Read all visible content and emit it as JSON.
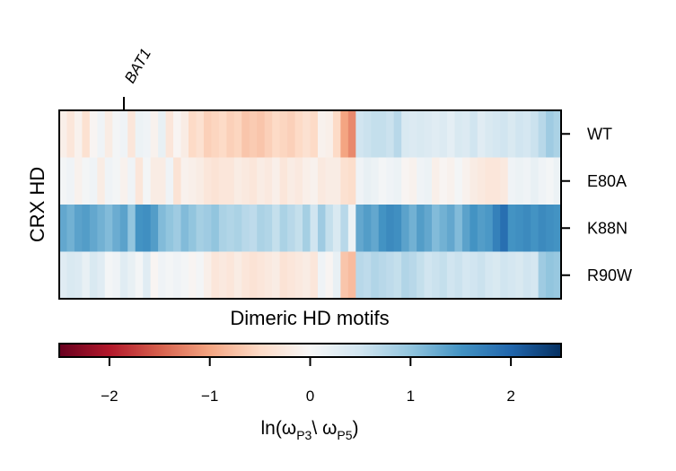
{
  "chart_data": {
    "type": "heatmap",
    "ylabel": "CRX HD",
    "xlabel": "Dimeric HD motifs",
    "rows": [
      "WT",
      "E80A",
      "K88N",
      "R90W"
    ],
    "top_annotation": "BAT1",
    "top_annotation_column": 8,
    "n_columns": 66,
    "values": [
      [
        -0.15,
        -0.3,
        -0.1,
        -0.4,
        -0.05,
        0.1,
        -0.2,
        0.05,
        0.1,
        -0.3,
        0.15,
        0.1,
        -0.1,
        0.2,
        -0.3,
        -0.05,
        -0.2,
        -0.5,
        -0.4,
        -0.6,
        -0.55,
        -0.5,
        -0.6,
        -0.55,
        -0.7,
        -0.65,
        -0.7,
        -0.6,
        -0.5,
        -0.55,
        -0.6,
        -0.5,
        -0.4,
        -0.5,
        -0.1,
        -0.15,
        -0.5,
        -1.0,
        -1.2,
        0.5,
        0.55,
        0.6,
        0.6,
        0.55,
        0.7,
        0.4,
        0.35,
        0.4,
        0.35,
        0.3,
        0.35,
        0.25,
        0.4,
        0.35,
        0.5,
        0.3,
        0.4,
        0.45,
        0.5,
        0.4,
        0.5,
        0.45,
        0.55,
        0.7,
        0.9,
        0.8
      ],
      [
        0.05,
        0.1,
        -0.1,
        0.05,
        0.1,
        -0.2,
        0.1,
        0.05,
        -0.1,
        0.1,
        -0.3,
        0.05,
        -0.2,
        -0.2,
        0.1,
        -0.35,
        -0.1,
        -0.15,
        -0.2,
        -0.3,
        -0.35,
        -0.3,
        -0.3,
        -0.2,
        -0.25,
        -0.3,
        -0.2,
        -0.25,
        -0.15,
        -0.3,
        -0.2,
        -0.25,
        -0.15,
        -0.1,
        -0.25,
        -0.2,
        -0.2,
        -0.4,
        -0.45,
        0.1,
        0.2,
        0.15,
        0.05,
        0.1,
        0.15,
        -0.05,
        -0.1,
        0.1,
        0.15,
        -0.15,
        -0.05,
        -0.1,
        0.05,
        -0.1,
        -0.2,
        -0.25,
        -0.3,
        -0.3,
        -0.25,
        0.1,
        0.15,
        0.1,
        0.2,
        0.1,
        0.05,
        0.15
      ],
      [
        1.3,
        1.2,
        1.35,
        1.4,
        1.3,
        1.2,
        1.1,
        1.25,
        1.35,
        1.0,
        1.5,
        1.55,
        1.4,
        1.1,
        1.0,
        0.9,
        1.1,
        1.0,
        0.85,
        0.9,
        1.0,
        0.8,
        0.75,
        0.8,
        0.7,
        0.65,
        0.8,
        0.75,
        0.6,
        0.8,
        0.7,
        0.6,
        0.85,
        0.5,
        0.9,
        0.6,
        0.4,
        0.7,
        0.15,
        1.3,
        1.4,
        1.3,
        1.5,
        1.6,
        1.55,
        1.35,
        1.2,
        1.4,
        1.3,
        1.1,
        1.2,
        1.3,
        1.1,
        1.35,
        1.5,
        1.4,
        1.45,
        1.7,
        1.9,
        1.5,
        1.55,
        1.6,
        1.5,
        1.6,
        1.55,
        1.5
      ],
      [
        0.3,
        0.4,
        0.35,
        0.2,
        0.4,
        0.3,
        0.05,
        0.1,
        0.3,
        0.2,
        0.05,
        0.3,
        -0.05,
        0.1,
        0.05,
        0.1,
        0.05,
        -0.05,
        0.05,
        -0.15,
        -0.3,
        -0.25,
        -0.3,
        -0.2,
        -0.3,
        -0.35,
        -0.3,
        -0.25,
        -0.2,
        -0.35,
        -0.3,
        -0.25,
        -0.2,
        -0.3,
        0.1,
        -0.05,
        0.2,
        -0.7,
        -0.8,
        0.7,
        0.65,
        0.75,
        0.7,
        0.65,
        0.6,
        0.75,
        0.7,
        0.6,
        0.5,
        0.55,
        0.6,
        0.5,
        0.55,
        0.45,
        0.5,
        0.55,
        0.45,
        0.4,
        0.5,
        0.45,
        0.4,
        0.5,
        0.45,
        0.9,
        1.0,
        0.95
      ]
    ],
    "colorbar": {
      "colormap": "RdBu",
      "vmin": -2.5,
      "vmax": 2.5,
      "ticks": [
        "−2",
        "−1",
        "0",
        "1",
        "2"
      ],
      "tick_values": [
        -2,
        -1,
        0,
        1,
        2
      ],
      "label": "ln(ω",
      "label_sub1": "P3",
      "label_mid": "\\ ω",
      "label_sub2": "P5",
      "label_end": ")"
    }
  }
}
